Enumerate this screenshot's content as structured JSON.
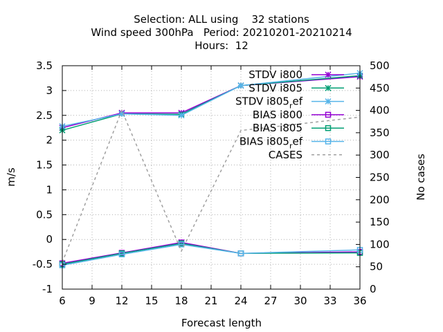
{
  "chart_data": {
    "type": "line",
    "title_lines": [
      "Selection: ALL using    32 stations",
      "Wind speed 300hPa   Period: 20210201-20210214",
      "Hours:  12"
    ],
    "xlabel": "Forecast length",
    "ylabel": "m/s",
    "y2label": "No cases",
    "x": [
      6,
      12,
      18,
      24,
      36
    ],
    "xlim": [
      6,
      36
    ],
    "ylim": [
      -1,
      3.5
    ],
    "y2lim": [
      0,
      500
    ],
    "xticks": [
      "6",
      "9",
      "12",
      "15",
      "18",
      "21",
      "24",
      "27",
      "30",
      "33",
      "36"
    ],
    "yticks": [
      "-1",
      "-0.5",
      "0",
      "0.5",
      "1",
      "1.5",
      "2",
      "2.5",
      "3",
      "3.5"
    ],
    "y2ticks": [
      "0",
      "50",
      "100",
      "150",
      "200",
      "250",
      "300",
      "350",
      "400",
      "450",
      "500"
    ],
    "grid": true,
    "legend_position": "top-right",
    "series": [
      {
        "name": "STDV i800",
        "axis": "y",
        "marker": "star",
        "color": "#9400d3",
        "values": [
          2.25,
          2.55,
          2.55,
          3.1,
          3.28
        ]
      },
      {
        "name": "STDV i805",
        "axis": "y",
        "marker": "star",
        "color": "#009e73",
        "values": [
          2.2,
          2.53,
          2.52,
          3.1,
          3.3
        ]
      },
      {
        "name": "STDV i805_ref",
        "legend_label": [
          "STDV i805",
          "r",
          "ef"
        ],
        "axis": "y",
        "marker": "star",
        "color": "#56b4e9",
        "values": [
          2.28,
          2.53,
          2.5,
          3.1,
          3.35
        ]
      },
      {
        "name": "BIAS i800",
        "axis": "y",
        "marker": "square",
        "color": "#9400d3",
        "values": [
          -0.48,
          -0.27,
          -0.06,
          -0.28,
          -0.25
        ]
      },
      {
        "name": "BIAS i805",
        "axis": "y",
        "marker": "square",
        "color": "#009e73",
        "values": [
          -0.5,
          -0.28,
          -0.08,
          -0.28,
          -0.27
        ]
      },
      {
        "name": "BIAS i805_ref",
        "legend_label": [
          "BIAS i805",
          "r",
          "ef"
        ],
        "axis": "y",
        "marker": "square",
        "color": "#56b4e9",
        "values": [
          -0.52,
          -0.3,
          -0.1,
          -0.28,
          -0.21
        ]
      },
      {
        "name": "CASES",
        "axis": "y2",
        "marker": "none",
        "dashed": true,
        "color": "#a0a0a0",
        "values": [
          60,
          400,
          85,
          355,
          385
        ]
      }
    ]
  }
}
